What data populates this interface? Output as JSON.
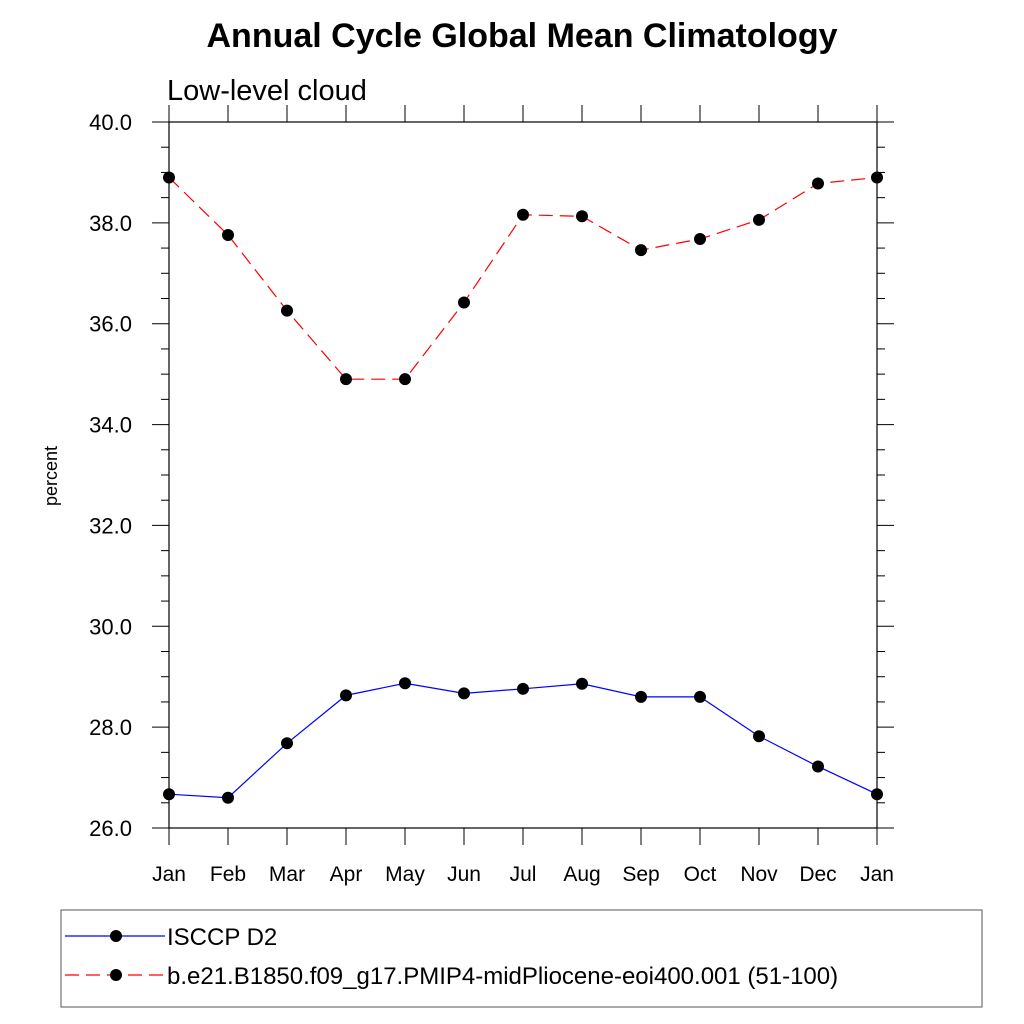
{
  "chart_data": {
    "type": "line",
    "title": "Annual Cycle Global Mean Climatology",
    "subtitle": "Low-level cloud",
    "ylabel": "percent",
    "xlabel": "",
    "categories": [
      "Jan",
      "Feb",
      "Mar",
      "Apr",
      "May",
      "Jun",
      "Jul",
      "Aug",
      "Sep",
      "Oct",
      "Nov",
      "Dec",
      "Jan"
    ],
    "ylim": [
      26.0,
      40.0
    ],
    "yticks": [
      "26.0",
      "28.0",
      "30.0",
      "32.0",
      "34.0",
      "36.0",
      "38.0",
      "40.0"
    ],
    "grid": false,
    "legend_position": "bottom",
    "series": [
      {
        "name": "ISCCP D2",
        "color": "#0000ff",
        "dash": "solid",
        "marker": "circle",
        "values": [
          26.67,
          26.6,
          27.68,
          28.63,
          28.87,
          28.67,
          28.76,
          28.86,
          28.6,
          28.6,
          27.82,
          27.22,
          26.67
        ]
      },
      {
        "name": "b.e21.B1850.f09_g17.PMIP4-midPliocene-eoi400.001 (51-100)",
        "color": "#ff0000",
        "dash": "dashed",
        "marker": "circle",
        "values": [
          38.9,
          37.76,
          36.26,
          34.9,
          34.9,
          36.42,
          38.16,
          38.13,
          37.46,
          37.68,
          38.06,
          38.78,
          38.9
        ]
      }
    ]
  }
}
